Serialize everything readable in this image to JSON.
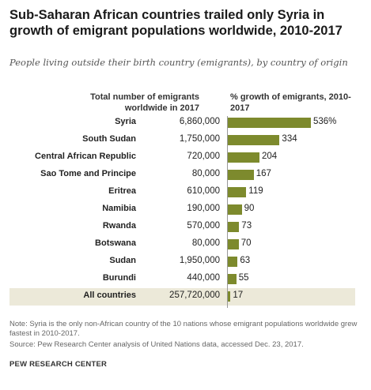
{
  "header": {
    "title": "Sub-Saharan African countries trailed only Syria in growth of emigrant populations worldwide, 2010-2017",
    "subtitle": "People living outside their birth country (emigrants), by country of origin"
  },
  "columns": {
    "count_header": "Total number of emigrants worldwide in 2017",
    "growth_header": "% growth of emigrants, 2010-2017"
  },
  "chart_data": {
    "type": "bar",
    "orientation": "horizontal",
    "categories": [
      "Syria",
      "South Sudan",
      "Central African Republic",
      "Sao Tome and Principe",
      "Eritrea",
      "Namibia",
      "Rwanda",
      "Botswana",
      "Sudan",
      "Burundi",
      "All countries"
    ],
    "emigrants_2017": [
      "6,860,000",
      "1,750,000",
      "720,000",
      "80,000",
      "610,000",
      "190,000",
      "570,000",
      "80,000",
      "1,950,000",
      "440,000",
      "257,720,000"
    ],
    "values": [
      536,
      334,
      204,
      167,
      119,
      90,
      73,
      70,
      63,
      55,
      17
    ],
    "value_labels": [
      "536%",
      "334",
      "204",
      "167",
      "119",
      "90",
      "73",
      "70",
      "63",
      "55",
      "17"
    ],
    "highlight_row": "All countries",
    "bar_color": "#7d8a2d",
    "highlight_color": "#ece9d9"
  },
  "footer": {
    "note": "Note: Syria is the only non-African country of the 10 nations whose emigrant populations worldwide grew fastest in 2010-2017.",
    "source": "Source: Pew Research Center analysis of United Nations data, accessed Dec. 23, 2017.",
    "brand": "PEW RESEARCH CENTER"
  }
}
